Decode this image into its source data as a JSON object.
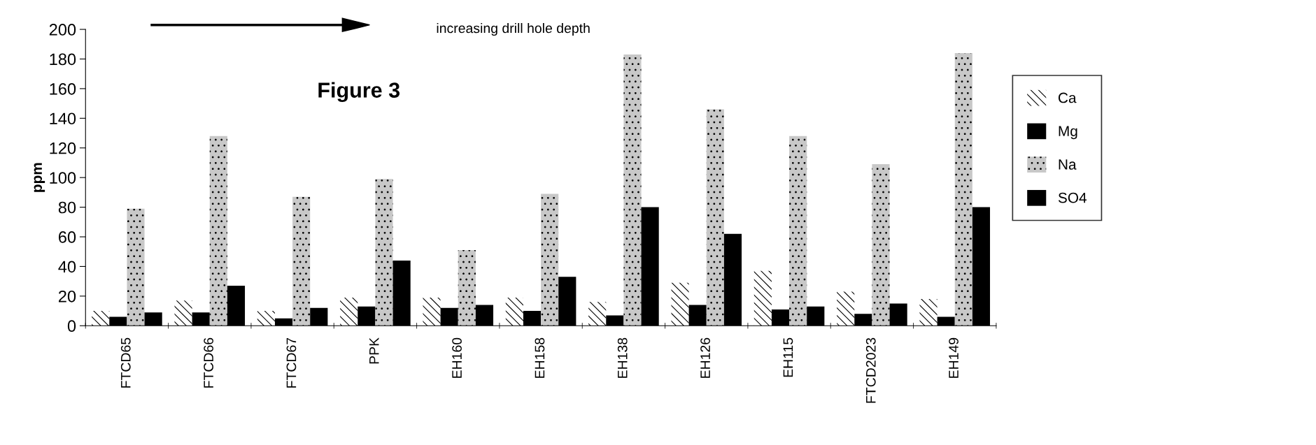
{
  "chart_data": {
    "type": "bar",
    "title": "Figure 3",
    "ylabel": "ppm",
    "annotations": [
      "increasing drill hole depth"
    ],
    "categories": [
      "FTCD65",
      "FTCD66",
      "FTCD67",
      "PPK",
      "EH160",
      "EH158",
      "EH138",
      "EH126",
      "EH115",
      "FTCD2023",
      "EH149"
    ],
    "series": [
      {
        "name": "Ca",
        "color": "#ffffff",
        "values": [
          10,
          17,
          10,
          19,
          19,
          19,
          16,
          29,
          37,
          23,
          18
        ]
      },
      {
        "name": "Mg",
        "color": "#000000",
        "values": [
          6,
          9,
          5,
          13,
          12,
          10,
          7,
          14,
          11,
          8,
          6
        ]
      },
      {
        "name": "Na",
        "color": "#c8c8c8",
        "values": [
          79,
          128,
          87,
          99,
          51,
          89,
          183,
          146,
          128,
          109,
          184
        ]
      },
      {
        "name": "SO4",
        "color": "#000000",
        "values": [
          9,
          27,
          12,
          44,
          14,
          33,
          80,
          62,
          13,
          15,
          80
        ]
      }
    ],
    "ylim": [
      0,
      200
    ],
    "yticks": [
      0,
      20,
      40,
      60,
      80,
      100,
      120,
      140,
      160,
      180,
      200
    ],
    "grid": false,
    "legend": "right"
  }
}
